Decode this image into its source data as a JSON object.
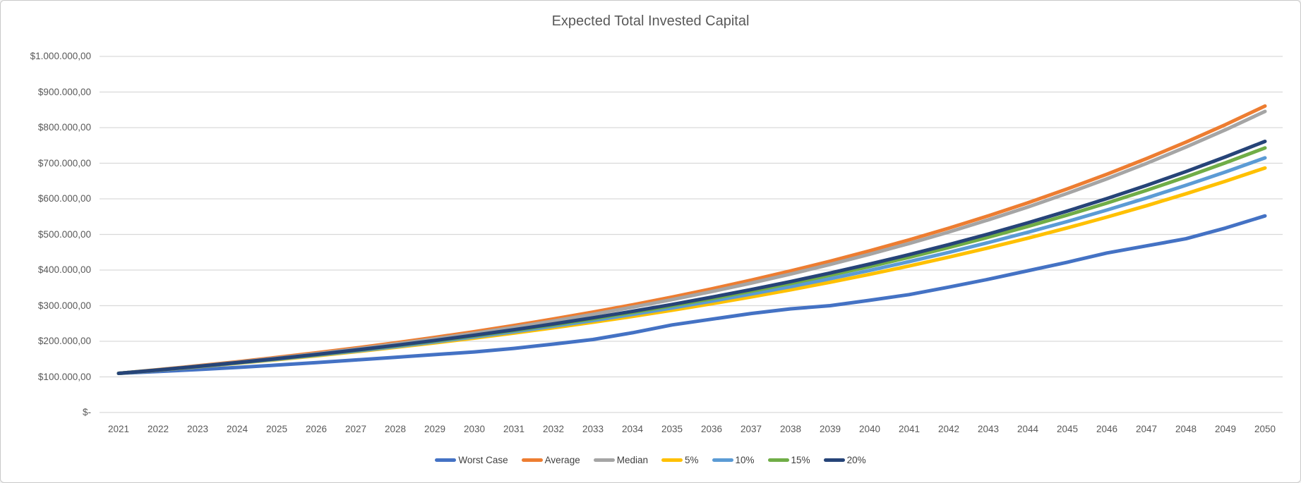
{
  "chart": {
    "title": "Expected Total Invested Capital"
  },
  "colors": {
    "title_text": "#595959",
    "axis_text": "#595959",
    "legend_text": "#404040",
    "gridline": "#D9D9D9",
    "frame_border": "#c9c9c9",
    "background": "#ffffff"
  },
  "chart_data": {
    "type": "line",
    "title": "Expected Total Invested Capital",
    "xlabel": "",
    "ylabel": "",
    "x": [
      2021,
      2022,
      2023,
      2024,
      2025,
      2026,
      2027,
      2028,
      2029,
      2030,
      2031,
      2032,
      2033,
      2034,
      2035,
      2036,
      2037,
      2038,
      2039,
      2040,
      2041,
      2042,
      2043,
      2044,
      2045,
      2046,
      2047,
      2048,
      2049,
      2050
    ],
    "ylim": [
      0,
      1000000
    ],
    "y_tick_step": 100000,
    "y_tick_values": [
      0,
      100000,
      200000,
      300000,
      400000,
      500000,
      600000,
      700000,
      800000,
      900000,
      1000000
    ],
    "y_tick_labels": [
      "$-",
      "$100.000,00",
      "$200.000,00",
      "$300.000,00",
      "$400.000,00",
      "$500.000,00",
      "$600.000,00",
      "$700.000,00",
      "$800.000,00",
      "$900.000,00",
      "$1.000.000,00"
    ],
    "grid": "horizontal",
    "legend_position": "bottom",
    "series": [
      {
        "name": "Worst Case",
        "color": "#4472C4",
        "values": [
          110000,
          115000,
          120500,
          126500,
          133000,
          140000,
          147500,
          155000,
          162500,
          170000,
          180000,
          192000,
          205000,
          224000,
          246000,
          262000,
          278000,
          291000,
          300000,
          315000,
          331000,
          352000,
          374000,
          398000,
          422000,
          448000,
          468000,
          488000,
          518000,
          552000
        ]
      },
      {
        "name": "Average",
        "color": "#ED7D31",
        "values": [
          110000,
          120200,
          131000,
          142400,
          154600,
          167500,
          181100,
          195600,
          210900,
          227100,
          244300,
          262600,
          281900,
          302400,
          324200,
          347200,
          371700,
          397600,
          425000,
          454100,
          484900,
          517600,
          552300,
          589000,
          627900,
          669200,
          712900,
          759300,
          808400,
          860500
        ]
      },
      {
        "name": "Median",
        "color": "#A5A5A5",
        "values": [
          110000,
          119700,
          130000,
          140800,
          152500,
          164900,
          178000,
          192000,
          206800,
          222400,
          239100,
          256900,
          275700,
          295700,
          317000,
          339400,
          363400,
          388800,
          415700,
          444300,
          474600,
          506700,
          540900,
          577100,
          615500,
          656300,
          699500,
          745300,
          793900,
          845500
        ]
      },
      {
        "name": "5%",
        "color": "#FFC000",
        "values": [
          110000,
          118900,
          128200,
          138000,
          148300,
          159200,
          170700,
          182800,
          195500,
          208900,
          223000,
          237800,
          253400,
          269800,
          287100,
          305300,
          324400,
          344500,
          365700,
          388000,
          411500,
          436200,
          462200,
          489600,
          518400,
          548700,
          580600,
          614200,
          649500,
          686700
        ]
      },
      {
        "name": "10%",
        "color": "#5B9BD5",
        "values": [
          110000,
          119100,
          128700,
          138800,
          149500,
          160700,
          172500,
          185000,
          198200,
          212100,
          226700,
          242100,
          258300,
          275400,
          293400,
          312400,
          332400,
          353500,
          375700,
          399100,
          423800,
          449800,
          477200,
          506100,
          536500,
          568600,
          602400,
          638000,
          675500,
          715000
        ]
      },
      {
        "name": "15%",
        "color": "#70AD47",
        "values": [
          110000,
          119400,
          129200,
          139600,
          150600,
          162200,
          174400,
          187300,
          200900,
          215200,
          230300,
          246300,
          263100,
          280900,
          299600,
          319400,
          340300,
          362300,
          385500,
          410000,
          435900,
          463200,
          492000,
          522400,
          554400,
          588200,
          623800,
          661400,
          701100,
          743000
        ]
      },
      {
        "name": "20%",
        "color": "#264478",
        "values": [
          110000,
          119500,
          129500,
          140100,
          151200,
          163000,
          175400,
          188500,
          202400,
          217000,
          232500,
          248800,
          266000,
          284200,
          303400,
          323700,
          345100,
          367700,
          391600,
          416800,
          443400,
          471500,
          501200,
          532600,
          565700,
          600700,
          637600,
          676600,
          717800,
          761300
        ]
      }
    ]
  }
}
